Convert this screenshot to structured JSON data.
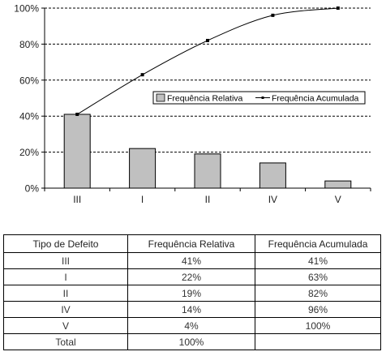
{
  "chart_data": {
    "type": "bar",
    "categories": [
      "III",
      "I",
      "II",
      "IV",
      "V"
    ],
    "series": [
      {
        "name": "Frequência Relativa",
        "kind": "bar",
        "values": [
          41,
          22,
          19,
          14,
          4
        ],
        "color": "#c0c0c0"
      },
      {
        "name": "Frequência Acumulada",
        "kind": "line",
        "values": [
          41,
          63,
          82,
          96,
          100
        ],
        "color": "#000000"
      }
    ],
    "y_ticks": [
      "0%",
      "20%",
      "40%",
      "60%",
      "80%",
      "100%"
    ],
    "ylim": [
      0,
      100
    ],
    "grid": "horizontal dashed",
    "legend_position": "inside-right"
  },
  "table": {
    "headers": [
      "Tipo de Defeito",
      "Frequência Relativa",
      "Frequência Acumulada"
    ],
    "rows": [
      [
        "III",
        "41%",
        "41%"
      ],
      [
        "I",
        "22%",
        "63%"
      ],
      [
        "II",
        "19%",
        "82%"
      ],
      [
        "IV",
        "14%",
        "96%"
      ],
      [
        "V",
        "4%",
        "100%"
      ],
      [
        "Total",
        "100%",
        ""
      ]
    ]
  }
}
